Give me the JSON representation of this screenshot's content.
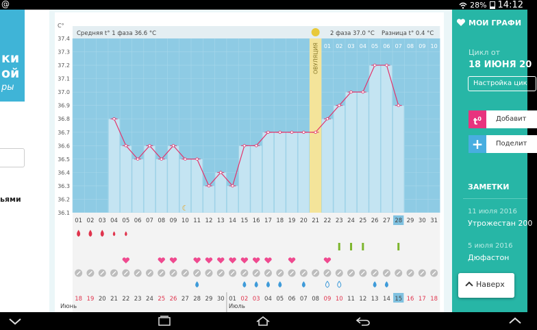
{
  "status": {
    "at_symbol": "@",
    "battery": "28%",
    "time": "14:12"
  },
  "left_banner": {
    "lines": [
      "ки",
      "ой",
      "ры"
    ]
  },
  "left_text": "ьями",
  "chart": {
    "unit": "C°",
    "phase1_label": "Средняя t° 1 фаза",
    "phase1_value": "36.6 °C",
    "phase2_label": "2 фаза",
    "phase2_value": "37.0 °C",
    "diff_label": "Разница t°",
    "diff_value": "0.4 °C",
    "ovulation_label": "ОВУЛЯЦИЯ",
    "month1": "Июнь",
    "month2": "Июль",
    "y_ticks": [
      "37.4",
      "37.3",
      "37.2",
      "37.1",
      "37.0",
      "36.9",
      "36.8",
      "36.7",
      "36.6",
      "36.5",
      "36.4",
      "36.3",
      "36.2",
      "36.1"
    ],
    "cycle_days": [
      "01",
      "02",
      "03",
      "04",
      "05",
      "06",
      "07",
      "08",
      "09",
      "10",
      "11",
      "12",
      "13",
      "14",
      "15",
      "16",
      "17",
      "18",
      "19",
      "20",
      "21",
      "22",
      "23",
      "24",
      "25",
      "26",
      "27",
      "28",
      "29",
      "30",
      "31"
    ],
    "post_ov_days": [
      "01",
      "02",
      "03",
      "04",
      "05",
      "06",
      "07",
      "08",
      "09",
      "10"
    ],
    "dates": [
      "18",
      "19",
      "20",
      "21",
      "22",
      "23",
      "24",
      "25",
      "26",
      "27",
      "28",
      "29",
      "30",
      "01",
      "02",
      "03",
      "04",
      "05",
      "06",
      "07",
      "08",
      "09",
      "10",
      "11",
      "12",
      "13",
      "14",
      "15",
      "16",
      "17",
      "18"
    ],
    "red_dates": [
      0,
      1,
      7,
      8,
      14,
      15,
      21,
      22,
      28,
      29,
      30
    ],
    "today_index": 27,
    "colors": {
      "grid_bg": "#8ecbe4",
      "bar": "#c4e4f2",
      "line": "#e2336b",
      "ovulation": "#f4e49a",
      "heart": "#ef4a8f",
      "drop_red": "#e0344d",
      "drop_blue": "#3f9bd9",
      "green": "#7db52d",
      "tick_grey": "#bdbdbd"
    }
  },
  "chart_data": {
    "type": "line",
    "x": [
      4,
      5,
      6,
      7,
      8,
      9,
      10,
      11,
      12,
      13,
      14,
      15,
      16,
      17,
      18,
      19,
      20,
      21,
      22,
      23,
      24,
      25,
      26,
      27,
      28
    ],
    "values": [
      36.8,
      36.6,
      36.5,
      36.6,
      36.5,
      36.6,
      36.5,
      36.5,
      36.3,
      36.4,
      36.3,
      36.6,
      36.6,
      36.7,
      36.7,
      36.7,
      36.7,
      36.7,
      36.8,
      36.9,
      37.0,
      37.0,
      37.2,
      37.2,
      36.9
    ],
    "ylim": [
      36.1,
      37.4
    ],
    "ovulation_day": 21,
    "menstruation_days": [
      1,
      2,
      3,
      4,
      5
    ],
    "heart_days": [
      5,
      8,
      9,
      11,
      12,
      13,
      14,
      15,
      16,
      17,
      19,
      22
    ],
    "green_mark_days": [
      23,
      24,
      25,
      28
    ],
    "blue_drop_days": [
      11,
      15,
      16,
      17,
      18,
      20
    ],
    "open_drop_days": [
      22,
      23
    ],
    "blue_drop_days_late": [
      26,
      27
    ]
  },
  "sidebar": {
    "my_graph": "МОИ ГРАФИ",
    "cycle_label": "Цикл от",
    "cycle_date": "18 ИЮНЯ 20",
    "setup_button": "Настройка цик",
    "add_label": "Добавит",
    "share_label": "Поделит",
    "notes_title": "ЗАМЕТКИ",
    "notes": [
      {
        "date": "11 июля 2016",
        "text": "Утрожестан 200"
      },
      {
        "date": "5 июля 2016",
        "text": "Дюфастон"
      }
    ]
  },
  "back_button": "Наверх"
}
